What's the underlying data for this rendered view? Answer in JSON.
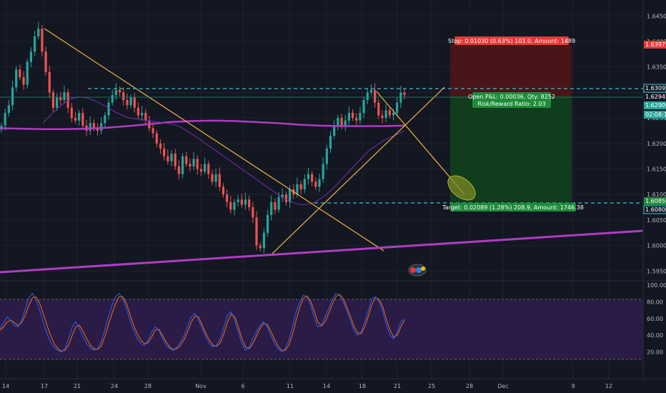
{
  "colors": {
    "background": "#131722",
    "up_candle": "#26a69a",
    "down_candle": "#ef5350",
    "ma_short": "#9c27b0",
    "ma_long": "#b03cc2",
    "trend_line": "#f5b342",
    "channel_line": "#b03cc2",
    "dashed_level": "#35c4cf",
    "stop_zone": "#5b1515",
    "target_zone": "#114a1a",
    "stoch_fill": "#2a1a4a",
    "stoch_k": "#2962ff",
    "stoch_d": "#ff6d00",
    "ellipse": "#8d9a2b"
  },
  "chart_data": [
    {
      "type": "candlestick",
      "name": "price",
      "x_labels": [
        "14",
        "17",
        "21",
        "24",
        "28",
        "Nov",
        "6",
        "11",
        "14",
        "18",
        "21",
        "25",
        "28",
        "Dec",
        "9",
        "12"
      ],
      "y_ticks": [
        "1.64500",
        "1.64000",
        "1.63500",
        "1.63000",
        "1.62500",
        "1.62000",
        "1.61500",
        "1.61000",
        "1.60500",
        "1.60000",
        "1.59500"
      ],
      "ylim": [
        1.5935,
        1.647
      ],
      "close_path": [
        1.6235,
        1.626,
        1.6275,
        1.631,
        1.6345,
        1.633,
        1.6315,
        1.636,
        1.638,
        1.641,
        1.6425,
        1.638,
        1.634,
        1.63,
        1.627,
        1.629,
        1.6285,
        1.63,
        1.627,
        1.625,
        1.6245,
        1.626,
        1.6235,
        1.6225,
        1.624,
        1.623,
        1.6225,
        1.624,
        1.6255,
        1.628,
        1.6295,
        1.6305,
        1.63,
        1.6285,
        1.6275,
        1.629,
        1.627,
        1.6255,
        1.626,
        1.6245,
        1.623,
        1.622,
        1.62,
        1.619,
        1.6175,
        1.6165,
        1.618,
        1.6155,
        1.614,
        1.6175,
        1.616,
        1.6155,
        1.617,
        1.615,
        1.6145,
        1.616,
        1.614,
        1.6125,
        1.614,
        1.6115,
        1.61,
        1.6085,
        1.607,
        1.6085,
        1.609,
        1.608,
        1.609,
        1.6075,
        1.6055,
        1.6,
        1.5995,
        1.6025,
        1.606,
        1.6085,
        1.607,
        1.6095,
        1.61,
        1.6085,
        1.611,
        1.61,
        1.612,
        1.611,
        1.613,
        1.614,
        1.6125,
        1.6115,
        1.613,
        1.616,
        1.619,
        1.6215,
        1.6235,
        1.625,
        1.6235,
        1.6245,
        1.626,
        1.625,
        1.6245,
        1.626,
        1.6285,
        1.63,
        1.6305,
        1.628,
        1.6255,
        1.625,
        1.6265,
        1.6255,
        1.626,
        1.628,
        1.63,
        1.6295
      ],
      "ma_short": [
        1.624,
        1.6255,
        1.6268,
        1.628,
        1.6288,
        1.6291,
        1.629,
        1.6285,
        1.6278,
        1.627,
        1.6262,
        1.6255,
        1.625,
        1.6248,
        1.6246,
        1.6244,
        1.6242,
        1.624,
        1.6238,
        1.6232,
        1.6224,
        1.6215,
        1.6205,
        1.6195,
        1.6185,
        1.6175,
        1.6165,
        1.6155,
        1.6145,
        1.6135,
        1.6125,
        1.6115,
        1.6105,
        1.6095,
        1.6088,
        1.6082,
        1.608,
        1.6082,
        1.6088,
        1.6098,
        1.611,
        1.6125,
        1.614,
        1.6155,
        1.617,
        1.6185,
        1.6195,
        1.6205,
        1.6212,
        1.6218,
        1.6225
      ],
      "ma_long": [
        1.623,
        1.6229,
        1.6228,
        1.6228,
        1.6229,
        1.6231,
        1.6234,
        1.6238,
        1.6242,
        1.6244,
        1.6245,
        1.6244,
        1.6242,
        1.624,
        1.6237,
        1.6235,
        1.6234,
        1.6234,
        1.6234,
        1.6235
      ],
      "current_price_tags": [
        "1.63093",
        "1.62945",
        "1.62909",
        "02:08:17",
        "1.60856",
        "1.60806",
        "1.63975"
      ],
      "annotations": {
        "stop": "Stop: 0.01030 (0.63%) 103.0, Amount: 1489",
        "open_pl": "Open P&L: 0.00036, Qty: 8252",
        "risk_reward": "Risk/Reward Ratio: 2.03",
        "target": "Target: 0.02089 (1.28%) 208.9, Amount: 1746.38"
      }
    },
    {
      "type": "line",
      "name": "stochastic",
      "y_ticks": [
        "100.00",
        "80.00",
        "60.00",
        "40.00",
        "20.00"
      ],
      "ylim": [
        0,
        100
      ],
      "bands": [
        20,
        80
      ],
      "k_values": [
        48,
        55,
        62,
        58,
        52,
        50,
        58,
        72,
        85,
        90,
        82,
        70,
        55,
        42,
        32,
        25,
        22,
        20,
        24,
        36,
        50,
        56,
        48,
        38,
        30,
        25,
        22,
        24,
        32,
        46,
        62,
        76,
        86,
        90,
        84,
        72,
        58,
        46,
        36,
        30,
        28,
        34,
        44,
        50,
        46,
        36,
        28,
        24,
        22,
        26,
        32,
        40,
        52,
        62,
        66,
        58,
        48,
        38,
        30,
        26,
        28,
        36,
        50,
        64,
        68,
        58,
        44,
        30,
        22,
        26,
        36,
        44,
        52,
        56,
        50,
        40,
        30,
        24,
        20,
        24,
        34,
        50,
        68,
        80,
        88,
        86,
        76,
        62,
        50,
        52,
        62,
        72,
        82,
        90,
        88,
        80,
        70,
        58,
        46,
        40,
        44,
        56,
        70,
        84,
        86,
        80,
        68,
        52,
        40,
        36,
        44,
        56,
        60
      ],
      "d_values": [
        46,
        50,
        56,
        58,
        55,
        52,
        55,
        64,
        76,
        85,
        86,
        78,
        66,
        52,
        40,
        30,
        24,
        21,
        22,
        28,
        40,
        50,
        52,
        45,
        36,
        28,
        24,
        23,
        27,
        38,
        52,
        66,
        78,
        86,
        86,
        78,
        65,
        52,
        42,
        34,
        30,
        31,
        38,
        46,
        47,
        40,
        32,
        26,
        23,
        24,
        28,
        35,
        45,
        56,
        63,
        62,
        52,
        42,
        34,
        28,
        27,
        31,
        42,
        56,
        65,
        62,
        50,
        36,
        26,
        24,
        30,
        39,
        48,
        54,
        53,
        45,
        35,
        27,
        22,
        22,
        28,
        41,
        58,
        73,
        84,
        87,
        81,
        69,
        56,
        51,
        56,
        66,
        77,
        86,
        89,
        84,
        74,
        63,
        51,
        43,
        42,
        50,
        63,
        77,
        85,
        83,
        74,
        59,
        46,
        38,
        40,
        50,
        58
      ]
    }
  ]
}
